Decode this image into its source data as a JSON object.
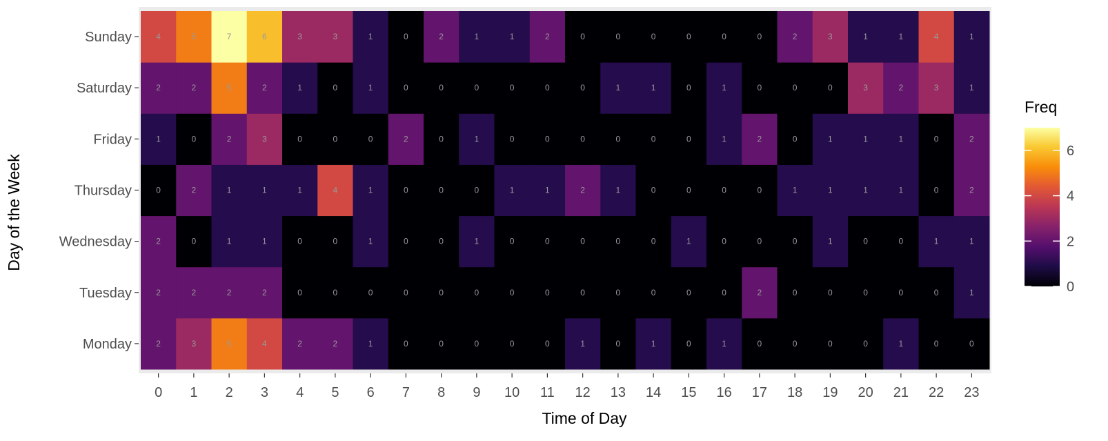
{
  "chart_data": {
    "type": "heatmap",
    "title": "",
    "xlabel": "Time of Day",
    "ylabel": "Day of the Week",
    "x": [
      "0",
      "1",
      "2",
      "3",
      "4",
      "5",
      "6",
      "7",
      "8",
      "9",
      "10",
      "11",
      "12",
      "13",
      "14",
      "15",
      "16",
      "17",
      "18",
      "19",
      "20",
      "21",
      "22",
      "23"
    ],
    "y": [
      "Monday",
      "Tuesday",
      "Wednesday",
      "Thursday",
      "Friday",
      "Saturday",
      "Sunday"
    ],
    "values": [
      [
        2,
        3,
        5,
        4,
        2,
        2,
        1,
        0,
        0,
        0,
        0,
        0,
        1,
        0,
        1,
        0,
        1,
        0,
        0,
        0,
        0,
        1,
        0,
        0
      ],
      [
        2,
        2,
        2,
        2,
        0,
        0,
        0,
        0,
        0,
        0,
        0,
        0,
        0,
        0,
        0,
        0,
        0,
        2,
        0,
        0,
        0,
        0,
        0,
        1
      ],
      [
        2,
        0,
        1,
        1,
        0,
        0,
        1,
        0,
        0,
        1,
        0,
        0,
        0,
        0,
        0,
        1,
        0,
        0,
        0,
        1,
        0,
        0,
        1,
        1
      ],
      [
        0,
        2,
        1,
        1,
        1,
        4,
        1,
        0,
        0,
        0,
        1,
        1,
        2,
        1,
        0,
        0,
        0,
        0,
        1,
        1,
        1,
        1,
        0,
        2
      ],
      [
        1,
        0,
        2,
        3,
        0,
        0,
        0,
        2,
        0,
        1,
        0,
        0,
        0,
        0,
        0,
        0,
        1,
        2,
        0,
        1,
        1,
        1,
        0,
        2
      ],
      [
        2,
        2,
        5,
        2,
        1,
        0,
        1,
        0,
        0,
        0,
        0,
        0,
        0,
        1,
        1,
        0,
        1,
        0,
        0,
        0,
        3,
        2,
        3,
        1
      ],
      [
        4,
        5,
        7,
        6,
        3,
        3,
        1,
        0,
        2,
        1,
        1,
        2,
        0,
        0,
        0,
        0,
        0,
        0,
        2,
        3,
        1,
        1,
        4,
        1
      ]
    ],
    "zlim": [
      0,
      7
    ],
    "colorscale": "inferno",
    "legend": {
      "title": "Freq",
      "ticks": [
        0,
        2,
        4,
        6
      ],
      "position": "right"
    },
    "panel_background": "#ebebeb",
    "grid": false
  }
}
